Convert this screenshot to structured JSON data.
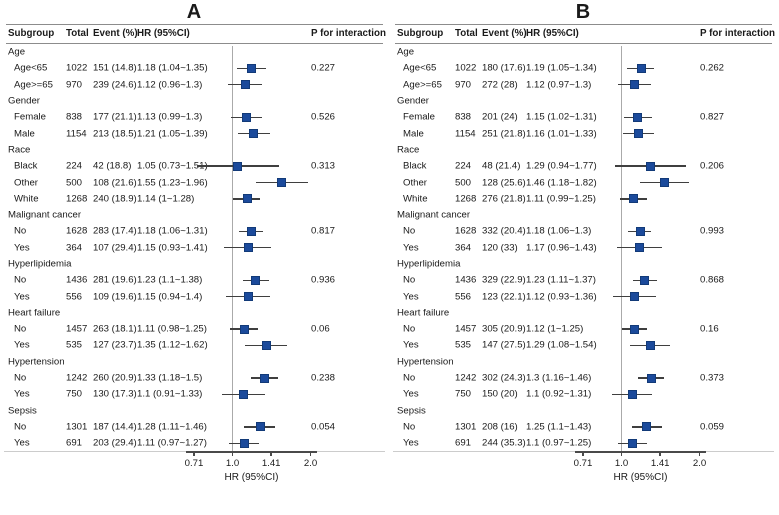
{
  "chart_data": [
    {
      "type": "forest",
      "title": "A",
      "columns": {
        "subgroup": "Subgroup",
        "total": "Total",
        "event": "Event (%)",
        "hr": "HR (95%CI)",
        "p": "P for interaction"
      },
      "axis": {
        "scale": "log2",
        "label": "HR (95%CI)",
        "reference_line": 1.0,
        "ticks": [
          {
            "value": 0.71,
            "label": "0.71"
          },
          {
            "value": 1.0,
            "label": "1.0"
          },
          {
            "value": 1.41,
            "label": "1.41"
          },
          {
            "value": 2.0,
            "label": "2.0"
          }
        ]
      },
      "colors": {
        "marker": "#1b4a9b",
        "marker_border": "#123a78",
        "ci_line": "#3f3f3f",
        "reference_line": "#aaaaaa"
      },
      "rows": [
        {
          "kind": "group",
          "label": "Age"
        },
        {
          "kind": "item",
          "label": "Age<65",
          "total": "1022",
          "event": "151 (14.8)",
          "hr_text": "1.18 (1.04~1.35)",
          "hr": 1.18,
          "ci": [
            1.04,
            1.35
          ],
          "p": "0.227"
        },
        {
          "kind": "item",
          "label": "Age>=65",
          "total": "970",
          "event": "239 (24.6)",
          "hr_text": "1.12 (0.96~1.3)",
          "hr": 1.12,
          "ci": [
            0.96,
            1.3
          ],
          "p": ""
        },
        {
          "kind": "group",
          "label": "Gender"
        },
        {
          "kind": "item",
          "label": "Female",
          "total": "838",
          "event": "177 (21.1)",
          "hr_text": "1.13 (0.99~1.3)",
          "hr": 1.13,
          "ci": [
            0.99,
            1.3
          ],
          "p": "0.526"
        },
        {
          "kind": "item",
          "label": "Male",
          "total": "1154",
          "event": "213 (18.5)",
          "hr_text": "1.21 (1.05~1.39)",
          "hr": 1.21,
          "ci": [
            1.05,
            1.39
          ],
          "p": ""
        },
        {
          "kind": "group",
          "label": "Race"
        },
        {
          "kind": "item",
          "label": "Black",
          "total": "224",
          "event": "42 (18.8)",
          "hr_text": "1.05 (0.73~1.51)",
          "hr": 1.05,
          "ci": [
            0.73,
            1.51
          ],
          "p": "0.313"
        },
        {
          "kind": "item",
          "label": "Other",
          "total": "500",
          "event": "108 (21.6)",
          "hr_text": "1.55 (1.23~1.96)",
          "hr": 1.55,
          "ci": [
            1.23,
            1.96
          ],
          "p": ""
        },
        {
          "kind": "item",
          "label": "White",
          "total": "1268",
          "event": "240 (18.9)",
          "hr_text": "1.14 (1~1.28)",
          "hr": 1.14,
          "ci": [
            1.0,
            1.28
          ],
          "p": ""
        },
        {
          "kind": "group",
          "label": "Malignant cancer"
        },
        {
          "kind": "item",
          "label": "No",
          "total": "1628",
          "event": "283 (17.4)",
          "hr_text": "1.18 (1.06~1.31)",
          "hr": 1.18,
          "ci": [
            1.06,
            1.31
          ],
          "p": "0.817"
        },
        {
          "kind": "item",
          "label": "Yes",
          "total": "364",
          "event": "107 (29.4)",
          "hr_text": "1.15 (0.93~1.41)",
          "hr": 1.15,
          "ci": [
            0.93,
            1.41
          ],
          "p": ""
        },
        {
          "kind": "group",
          "label": "Hyperlipidemia"
        },
        {
          "kind": "item",
          "label": "No",
          "total": "1436",
          "event": "281 (19.6)",
          "hr_text": "1.23 (1.1~1.38)",
          "hr": 1.23,
          "ci": [
            1.1,
            1.38
          ],
          "p": "0.936"
        },
        {
          "kind": "item",
          "label": "Yes",
          "total": "556",
          "event": "109 (19.6)",
          "hr_text": "1.15 (0.94~1.4)",
          "hr": 1.15,
          "ci": [
            0.94,
            1.4
          ],
          "p": ""
        },
        {
          "kind": "group",
          "label": "Heart failure"
        },
        {
          "kind": "item",
          "label": "No",
          "total": "1457",
          "event": "263 (18.1)",
          "hr_text": "1.11 (0.98~1.25)",
          "hr": 1.11,
          "ci": [
            0.98,
            1.25
          ],
          "p": "0.06"
        },
        {
          "kind": "item",
          "label": "Yes",
          "total": "535",
          "event": "127 (23.7)",
          "hr_text": "1.35 (1.12~1.62)",
          "hr": 1.35,
          "ci": [
            1.12,
            1.62
          ],
          "p": ""
        },
        {
          "kind": "group",
          "label": "Hypertension"
        },
        {
          "kind": "item",
          "label": "No",
          "total": "1242",
          "event": "260 (20.9)",
          "hr_text": "1.33 (1.18~1.5)",
          "hr": 1.33,
          "ci": [
            1.18,
            1.5
          ],
          "p": "0.238"
        },
        {
          "kind": "item",
          "label": "Yes",
          "total": "750",
          "event": "130 (17.3)",
          "hr_text": "1.1 (0.91~1.33)",
          "hr": 1.1,
          "ci": [
            0.91,
            1.33
          ],
          "p": ""
        },
        {
          "kind": "group",
          "label": "Sepsis"
        },
        {
          "kind": "item",
          "label": "No",
          "total": "1301",
          "event": "187 (14.4)",
          "hr_text": "1.28 (1.11~1.46)",
          "hr": 1.28,
          "ci": [
            1.11,
            1.46
          ],
          "p": "0.054"
        },
        {
          "kind": "item",
          "label": "Yes",
          "total": "691",
          "event": "203 (29.4)",
          "hr_text": "1.11 (0.97~1.27)",
          "hr": 1.11,
          "ci": [
            0.97,
            1.27
          ],
          "p": ""
        }
      ]
    },
    {
      "type": "forest",
      "title": "B",
      "columns": {
        "subgroup": "Subgroup",
        "total": "Total",
        "event": "Event (%)",
        "hr": "HR (95%CI)",
        "p": "P for interaction"
      },
      "axis": {
        "scale": "log2",
        "label": "HR (95%CI)",
        "reference_line": 1.0,
        "ticks": [
          {
            "value": 0.71,
            "label": "0.71"
          },
          {
            "value": 1.0,
            "label": "1.0"
          },
          {
            "value": 1.41,
            "label": "1.41"
          },
          {
            "value": 2.0,
            "label": "2.0"
          }
        ]
      },
      "colors": {
        "marker": "#1b4a9b",
        "marker_border": "#123a78",
        "ci_line": "#3f3f3f",
        "reference_line": "#aaaaaa"
      },
      "rows": [
        {
          "kind": "group",
          "label": "Age"
        },
        {
          "kind": "item",
          "label": "Age<65",
          "total": "1022",
          "event": "180 (17.6)",
          "hr_text": "1.19 (1.05~1.34)",
          "hr": 1.19,
          "ci": [
            1.05,
            1.34
          ],
          "p": "0.262"
        },
        {
          "kind": "item",
          "label": "Age>=65",
          "total": "970",
          "event": "272 (28)",
          "hr_text": "1.12 (0.97~1.3)",
          "hr": 1.12,
          "ci": [
            0.97,
            1.3
          ],
          "p": ""
        },
        {
          "kind": "group",
          "label": "Gender"
        },
        {
          "kind": "item",
          "label": "Female",
          "total": "838",
          "event": "201 (24)",
          "hr_text": "1.15 (1.02~1.31)",
          "hr": 1.15,
          "ci": [
            1.02,
            1.31
          ],
          "p": "0.827"
        },
        {
          "kind": "item",
          "label": "Male",
          "total": "1154",
          "event": "251 (21.8)",
          "hr_text": "1.16 (1.01~1.33)",
          "hr": 1.16,
          "ci": [
            1.01,
            1.33
          ],
          "p": ""
        },
        {
          "kind": "group",
          "label": "Race"
        },
        {
          "kind": "item",
          "label": "Black",
          "total": "224",
          "event": "48 (21.4)",
          "hr_text": "1.29 (0.94~1.77)",
          "hr": 1.29,
          "ci": [
            0.94,
            1.77
          ],
          "p": "0.206"
        },
        {
          "kind": "item",
          "label": "Other",
          "total": "500",
          "event": "128 (25.6)",
          "hr_text": "1.46 (1.18~1.82)",
          "hr": 1.46,
          "ci": [
            1.18,
            1.82
          ],
          "p": ""
        },
        {
          "kind": "item",
          "label": "White",
          "total": "1268",
          "event": "276 (21.8)",
          "hr_text": "1.11 (0.99~1.25)",
          "hr": 1.11,
          "ci": [
            0.99,
            1.25
          ],
          "p": ""
        },
        {
          "kind": "group",
          "label": "Malignant cancer"
        },
        {
          "kind": "item",
          "label": "No",
          "total": "1628",
          "event": "332 (20.4)",
          "hr_text": "1.18 (1.06~1.3)",
          "hr": 1.18,
          "ci": [
            1.06,
            1.3
          ],
          "p": "0.993"
        },
        {
          "kind": "item",
          "label": "Yes",
          "total": "364",
          "event": "120 (33)",
          "hr_text": "1.17 (0.96~1.43)",
          "hr": 1.17,
          "ci": [
            0.96,
            1.43
          ],
          "p": ""
        },
        {
          "kind": "group",
          "label": "Hyperlipidemia"
        },
        {
          "kind": "item",
          "label": "No",
          "total": "1436",
          "event": "329 (22.9)",
          "hr_text": "1.23 (1.11~1.37)",
          "hr": 1.23,
          "ci": [
            1.11,
            1.37
          ],
          "p": "0.868"
        },
        {
          "kind": "item",
          "label": "Yes",
          "total": "556",
          "event": "123 (22.1)",
          "hr_text": "1.12 (0.93~1.36)",
          "hr": 1.12,
          "ci": [
            0.93,
            1.36
          ],
          "p": ""
        },
        {
          "kind": "group",
          "label": "Heart failure"
        },
        {
          "kind": "item",
          "label": "No",
          "total": "1457",
          "event": "305 (20.9)",
          "hr_text": "1.12 (1~1.25)",
          "hr": 1.12,
          "ci": [
            1.0,
            1.25
          ],
          "p": "0.16"
        },
        {
          "kind": "item",
          "label": "Yes",
          "total": "535",
          "event": "147 (27.5)",
          "hr_text": "1.29 (1.08~1.54)",
          "hr": 1.29,
          "ci": [
            1.08,
            1.54
          ],
          "p": ""
        },
        {
          "kind": "group",
          "label": "Hypertension"
        },
        {
          "kind": "item",
          "label": "No",
          "total": "1242",
          "event": "302 (24.3)",
          "hr_text": "1.3 (1.16~1.46)",
          "hr": 1.3,
          "ci": [
            1.16,
            1.46
          ],
          "p": "0.373"
        },
        {
          "kind": "item",
          "label": "Yes",
          "total": "750",
          "event": "150 (20)",
          "hr_text": "1.1 (0.92~1.31)",
          "hr": 1.1,
          "ci": [
            0.92,
            1.31
          ],
          "p": ""
        },
        {
          "kind": "group",
          "label": "Sepsis"
        },
        {
          "kind": "item",
          "label": "No",
          "total": "1301",
          "event": "208 (16)",
          "hr_text": "1.25 (1.1~1.43)",
          "hr": 1.25,
          "ci": [
            1.1,
            1.43
          ],
          "p": "0.059"
        },
        {
          "kind": "item",
          "label": "Yes",
          "total": "691",
          "event": "244 (35.3)",
          "hr_text": "1.1 (0.97~1.25)",
          "hr": 1.1,
          "ci": [
            0.97,
            1.25
          ],
          "p": ""
        }
      ]
    }
  ]
}
